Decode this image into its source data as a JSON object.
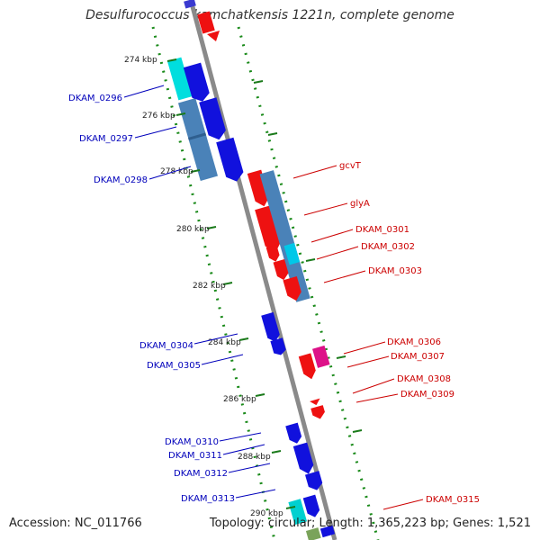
{
  "title": "Desulfurococcus kamchatkensis 1221n, complete genome",
  "accession": "Accession: NC_011766",
  "summary": "Topology: circular; Length: 1,365,223 bp; Genes: 1,521",
  "colors": {
    "backbone": "#888888",
    "forward_gene": "#ee1111",
    "reverse_gene": "#1111dd",
    "steelblue_feature": "#4a7fb0",
    "cyan_feature": "#00dddd",
    "magenta_feature": "#dd1199",
    "tick": "#1a7a1a",
    "label_red": "#cc0000",
    "label_blue": "#0000bb"
  },
  "tick_labels": [
    "274 kbp",
    "276 kbp",
    "278 kbp",
    "280 kbp",
    "282 kbp",
    "284 kbp",
    "286 kbp",
    "288 kbp",
    "290 kbp"
  ],
  "gene_labels_left": [
    "DKAM_0296",
    "DKAM_0297",
    "DKAM_0298",
    "DKAM_0304",
    "DKAM_0305",
    "DKAM_0310",
    "DKAM_0311",
    "DKAM_0312",
    "DKAM_0313"
  ],
  "gene_labels_right": [
    "gcvT",
    "glyA",
    "DKAM_0301",
    "DKAM_0302",
    "DKAM_0303",
    "DKAM_0306",
    "DKAM_0307",
    "DKAM_0308",
    "DKAM_0309",
    "DKAM_0315"
  ]
}
